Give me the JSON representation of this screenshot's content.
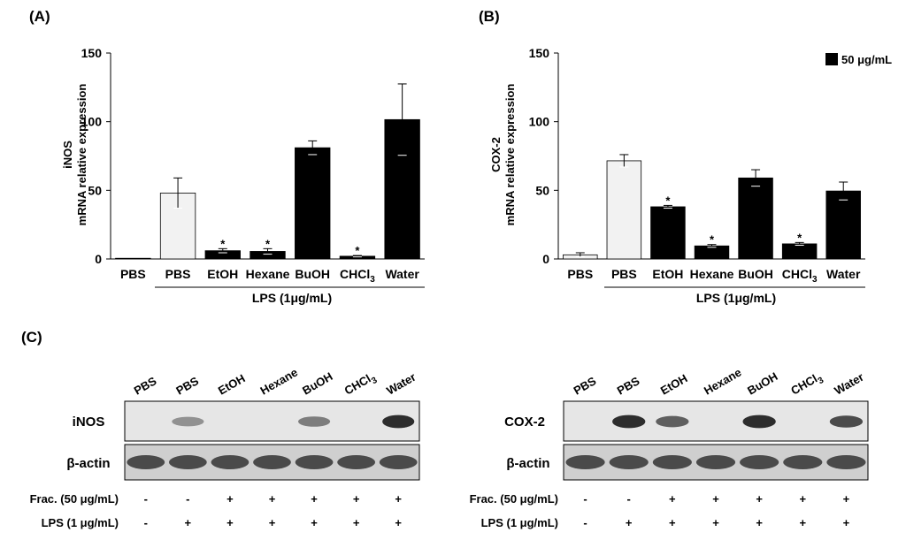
{
  "chart_data": [
    {
      "type": "bar",
      "panel_label": "(A)",
      "ylabel_line1": "iNOS",
      "ylabel_line2": "mRNA relative expression",
      "ylim": [
        0,
        150
      ],
      "yticks": [
        "0",
        "50",
        "100",
        "150"
      ],
      "categories": [
        "PBS",
        "PBS",
        "EtOH",
        "Hexane",
        "BuOH",
        "CHCl3",
        "Water"
      ],
      "values": [
        0.5,
        48,
        6,
        5.5,
        81,
        2,
        101.5
      ],
      "errors": [
        0,
        11,
        1.5,
        2,
        5,
        0.5,
        26
      ],
      "fills": [
        "#f2f2f2",
        "#f2f2f2",
        "#000000",
        "#000000",
        "#000000",
        "#000000",
        "#000000"
      ],
      "significance": [
        "",
        "",
        "*",
        "*",
        "",
        "*",
        ""
      ],
      "group_label": "LPS (1μg/mL)"
    },
    {
      "type": "bar",
      "panel_label": "(B)",
      "ylabel_line1": "COX-2",
      "ylabel_line2": "mRNA relative expression",
      "ylim": [
        0,
        150
      ],
      "yticks": [
        "0",
        "50",
        "100",
        "150"
      ],
      "categories": [
        "PBS",
        "PBS",
        "EtOH",
        "Hexane",
        "BuOH",
        "CHCl3",
        "Water"
      ],
      "values": [
        3,
        71.5,
        38,
        9.5,
        59,
        11,
        49.5
      ],
      "errors": [
        1.5,
        4.5,
        1,
        1,
        6,
        1,
        6.5
      ],
      "fills": [
        "#f2f2f2",
        "#f2f2f2",
        "#000000",
        "#000000",
        "#000000",
        "#000000",
        "#000000"
      ],
      "significance": [
        "",
        "",
        "*",
        "*",
        "",
        "*",
        ""
      ],
      "group_label": "LPS (1μg/mL)",
      "legend": "50 μg/mL"
    }
  ],
  "blots": {
    "panel_label": "(C)",
    "lanes": [
      "PBS",
      "PBS",
      "EtOH",
      "Hexane",
      "BuOH",
      "CHCl3",
      "Water"
    ],
    "left": {
      "rows": [
        "iNOS",
        "β-actin"
      ],
      "target_intensity": [
        0,
        0.35,
        0,
        0,
        0.45,
        0,
        0.85
      ]
    },
    "right": {
      "rows": [
        "COX-2",
        "β-actin"
      ],
      "target_intensity": [
        0,
        0.85,
        0.6,
        0,
        0.85,
        0,
        0.7
      ]
    },
    "frac_label": "Frac. (50 μg/mL)",
    "lps_label": "LPS (1 μg/mL)",
    "frac_signs": [
      "-",
      "-",
      "+",
      "+",
      "+",
      "+",
      "+"
    ],
    "lps_signs": [
      "-",
      "+",
      "+",
      "+",
      "+",
      "+",
      "+"
    ]
  }
}
